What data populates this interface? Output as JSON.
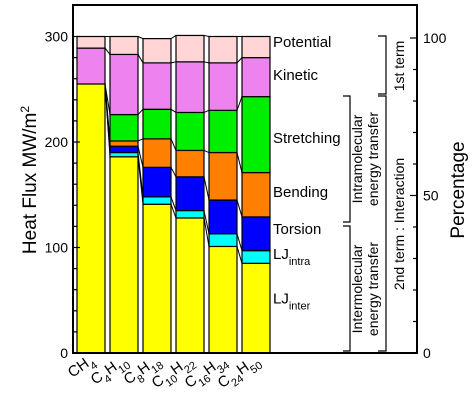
{
  "chart_data": {
    "type": "bar",
    "stacked": true,
    "categories": [
      {
        "base": "CH",
        "sub": "4"
      },
      {
        "base": "C",
        "sub": "4",
        "base2": "H",
        "sub2": "10"
      },
      {
        "base": "C",
        "sub": "8",
        "base2": "H",
        "sub2": "18"
      },
      {
        "base": "C",
        "sub": "10",
        "base2": "H",
        "sub2": "22"
      },
      {
        "base": "C",
        "sub": "16",
        "base2": "H",
        "sub2": "34"
      },
      {
        "base": "C",
        "sub": "24",
        "base2": "H",
        "sub2": "50"
      }
    ],
    "series": [
      {
        "key": "lj_inter",
        "color": "#ffff00",
        "values": [
          255,
          186,
          141,
          128,
          101,
          85
        ]
      },
      {
        "key": "lj_intra",
        "color": "#00ffff",
        "values": [
          0,
          4,
          7,
          7,
          12,
          12
        ]
      },
      {
        "key": "torsion",
        "color": "#0000ff",
        "values": [
          0,
          6,
          28,
          32,
          32,
          32
        ]
      },
      {
        "key": "bending",
        "color": "#ff8000",
        "values": [
          0,
          5,
          27,
          25,
          45,
          42
        ]
      },
      {
        "key": "stretching",
        "color": "#00ee00",
        "values": [
          0,
          25,
          28,
          36,
          40,
          72
        ]
      },
      {
        "key": "kinetic",
        "color": "#ee82ee",
        "values": [
          34,
          57,
          44,
          48,
          45,
          37
        ]
      },
      {
        "key": "potential",
        "color": "#ffd5d5",
        "values": [
          11,
          17,
          23,
          25,
          25,
          20
        ]
      }
    ],
    "series_labels": [
      {
        "key": "potential",
        "text": "Potential",
        "sub": "",
        "y": 290
      },
      {
        "key": "kinetic",
        "text": "Kinetic",
        "sub": "",
        "y": 259
      },
      {
        "key": "stretching",
        "text": "Stretching",
        "sub": "",
        "y": 199
      },
      {
        "key": "bending",
        "text": "Bending",
        "sub": "",
        "y": 148
      },
      {
        "key": "torsion",
        "text": "Torsion",
        "sub": "",
        "y": 113
      },
      {
        "key": "lj_intra",
        "text": "LJ",
        "sub": "intra",
        "y": 89
      },
      {
        "key": "lj_inter",
        "text": "LJ",
        "sub": "inter",
        "y": 47
      }
    ],
    "ylabel_base": "Heat Flux  MW/m",
    "ylabel_sup": "2",
    "y2label": "Percentage",
    "ylim": [
      0,
      300
    ],
    "y2lim": [
      0,
      100
    ],
    "y_ticks": [
      0,
      100,
      200,
      300
    ],
    "y2_ticks": [
      0,
      50,
      100
    ],
    "brackets": {
      "first_term": "1st term",
      "second_term": "2nd term : Interaction",
      "intra_line1": "Intramolecular",
      "intra_line2": "energy transfer",
      "inter_line1": "Intermolecular",
      "inter_line2": "energy transfer"
    }
  }
}
